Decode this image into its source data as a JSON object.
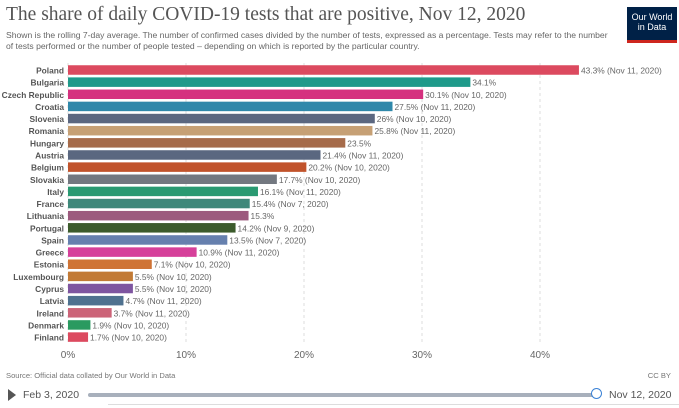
{
  "header": {
    "title": "The share of daily COVID-19 tests that are positive, Nov 12, 2020",
    "subtitle": "Shown is the rolling 7-day average. The number of confirmed cases divided by the number of tests, expressed as a percentage. Tests may refer to the number of tests performed or the number of people tested – depending on which is reported by the particular country.",
    "logo": "Our World in Data"
  },
  "chart_data": {
    "type": "bar",
    "orientation": "horizontal",
    "xlim": [
      0,
      45
    ],
    "grid": true,
    "ticks": [
      "0%",
      "10%",
      "20%",
      "30%",
      "40%"
    ],
    "tick_values": [
      0,
      10,
      20,
      30,
      40
    ],
    "categories": [
      "Poland",
      "Bulgaria",
      "Czech Republic",
      "Croatia",
      "Slovenia",
      "Romania",
      "Hungary",
      "Austria",
      "Belgium",
      "Slovakia",
      "Italy",
      "France",
      "Lithuania",
      "Portugal",
      "Spain",
      "Greece",
      "Estonia",
      "Luxembourg",
      "Cyprus",
      "Latvia",
      "Ireland",
      "Denmark",
      "Finland"
    ],
    "values": [
      43.3,
      34.1,
      30.1,
      27.5,
      26,
      25.8,
      23.5,
      21.4,
      20.2,
      17.7,
      16.1,
      15.4,
      15.3,
      14.2,
      13.5,
      10.9,
      7.1,
      5.5,
      5.5,
      4.7,
      3.7,
      1.9,
      1.7
    ],
    "labels": [
      "43.3% (Nov 11, 2020)",
      "34.1%",
      "30.1% (Nov 10, 2020)",
      "27.5% (Nov 11, 2020)",
      "26% (Nov 10, 2020)",
      "25.8% (Nov 11, 2020)",
      "23.5%",
      "21.4% (Nov 11, 2020)",
      "20.2% (Nov 10, 2020)",
      "17.7% (Nov 10, 2020)",
      "16.1% (Nov 11, 2020)",
      "15.4% (Nov 7, 2020)",
      "15.3%",
      "14.2% (Nov 9, 2020)",
      "13.5% (Nov 7, 2020)",
      "10.9% (Nov 11, 2020)",
      "7.1% (Nov 10, 2020)",
      "5.5% (Nov 10, 2020)",
      "5.5% (Nov 10, 2020)",
      "4.7% (Nov 11, 2020)",
      "3.7% (Nov 11, 2020)",
      "1.9% (Nov 10, 2020)",
      "1.7% (Nov 10, 2020)"
    ],
    "colors": [
      "#dc4a5f",
      "#1f9a8a",
      "#d5317f",
      "#2f88aa",
      "#5b6780",
      "#c6a075",
      "#a66b4a",
      "#5a6780",
      "#c1532b",
      "#737880",
      "#2a9a72",
      "#3f887a",
      "#9c5a7e",
      "#3c5b2c",
      "#6680ae",
      "#d6409a",
      "#cf7436",
      "#c27a35",
      "#7e55a0",
      "#4f718f",
      "#cc6478",
      "#2a9a60",
      "#dc4a5f"
    ]
  },
  "footer": {
    "source": "Source: Official data collated by Our World in Data",
    "license": "CC BY"
  },
  "timeline": {
    "start": "Feb 3, 2020",
    "end": "Nov 12, 2020",
    "position": 1.0
  }
}
